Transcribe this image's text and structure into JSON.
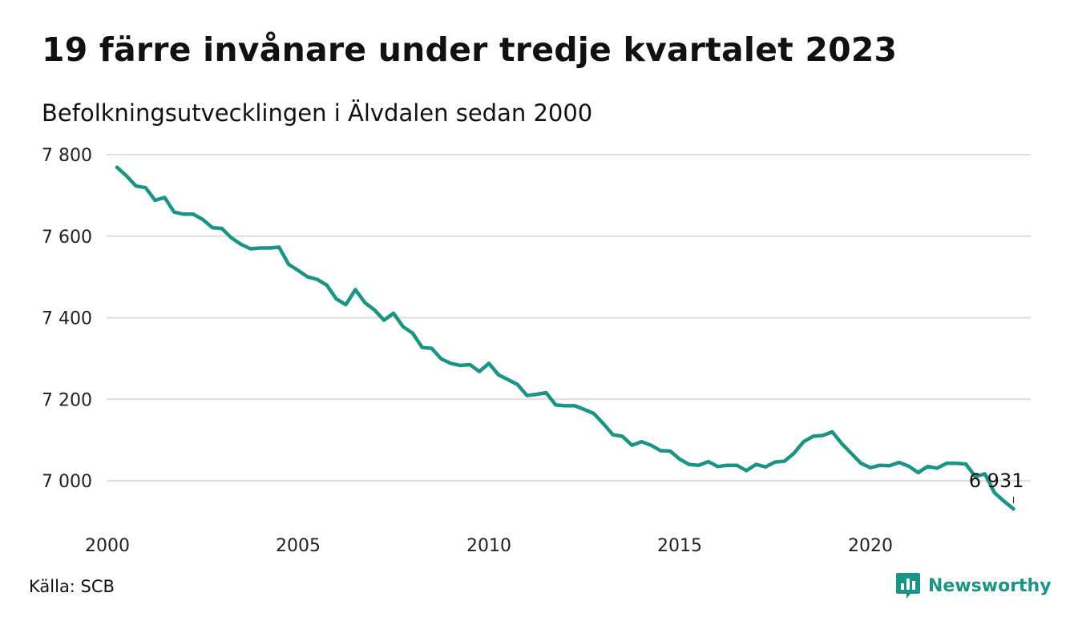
{
  "header": {
    "title": "19 färre invånare under tredje kvartalet 2023",
    "subtitle": "Befolkningsutvecklingen i Älvdalen sedan 2000"
  },
  "footer": {
    "source": "Källa: SCB",
    "brand": "Newsworthy"
  },
  "colors": {
    "line": "#1a9485",
    "grid": "#dddddd",
    "brand": "#1a9485"
  },
  "icons": {
    "brand_logo": "newsworthy-chart-bubble-icon"
  },
  "chart_data": {
    "type": "line",
    "title": "19 färre invånare under tredje kvartalet 2023",
    "subtitle": "Befolkningsutvecklingen i Älvdalen sedan 2000",
    "xlabel": "",
    "ylabel": "",
    "ylim": [
      6900,
      7800
    ],
    "xlim": [
      2000,
      2024.6
    ],
    "y_ticks": [
      7000,
      7200,
      7400,
      7600,
      7800
    ],
    "y_tick_labels": [
      "7 000",
      "7 200",
      "7 400",
      "7 600",
      "7 800"
    ],
    "x_ticks": [
      2000,
      2005,
      2010,
      2015,
      2020
    ],
    "x_tick_labels": [
      "2000",
      "2005",
      "2010",
      "2015",
      "2020"
    ],
    "grid": "horizontal",
    "end_label": "6 931",
    "series": [
      {
        "x": [
          2000.25,
          2000.5,
          2000.75,
          2001.0,
          2001.25,
          2001.5,
          2001.75,
          2002.0,
          2002.25,
          2002.5,
          2002.75,
          2003.0,
          2003.25,
          2003.5,
          2003.75,
          2004.0,
          2004.25,
          2004.5,
          2004.75,
          2005.0,
          2005.25,
          2005.5,
          2005.75,
          2006.0,
          2006.25,
          2006.5,
          2006.75,
          2007.0,
          2007.25,
          2007.5,
          2007.75,
          2008.0,
          2008.25,
          2008.5,
          2008.75,
          2009.0,
          2009.25,
          2009.5,
          2009.75,
          2010.0,
          2010.25,
          2010.5,
          2010.75,
          2011.0,
          2011.25,
          2011.5,
          2011.75,
          2012.0,
          2012.25,
          2012.5,
          2012.75,
          2013.0,
          2013.25,
          2013.5,
          2013.75,
          2014.0,
          2014.25,
          2014.5,
          2014.75,
          2015.0,
          2015.25,
          2015.5,
          2015.75,
          2016.0,
          2016.25,
          2016.5,
          2016.75,
          2017.0,
          2017.25,
          2017.5,
          2017.75,
          2018.0,
          2018.25,
          2018.5,
          2018.75,
          2019.0,
          2019.25,
          2019.5,
          2019.75,
          2020.0,
          2020.25,
          2020.5,
          2020.75,
          2021.0,
          2021.25,
          2021.5,
          2021.75,
          2022.0,
          2022.25,
          2022.5,
          2022.75,
          2023.0,
          2023.25,
          2023.5,
          2023.75
        ],
        "values": [
          7769,
          7748,
          7723,
          7719,
          7688,
          7695,
          7659,
          7654,
          7654,
          7641,
          7621,
          7619,
          7596,
          7580,
          7569,
          7571,
          7571,
          7573,
          7531,
          7516,
          7500,
          7494,
          7480,
          7446,
          7432,
          7469,
          7437,
          7419,
          7394,
          7411,
          7378,
          7362,
          7327,
          7325,
          7299,
          7288,
          7283,
          7285,
          7268,
          7288,
          7260,
          7248,
          7236,
          7209,
          7212,
          7216,
          7186,
          7184,
          7184,
          7175,
          7165,
          7140,
          7113,
          7109,
          7087,
          7096,
          7087,
          7074,
          7073,
          7053,
          7040,
          7038,
          7047,
          7035,
          7038,
          7038,
          7025,
          7040,
          7034,
          7046,
          7048,
          7068,
          7096,
          7109,
          7111,
          7120,
          7091,
          7067,
          7043,
          7032,
          7038,
          7037,
          7045,
          7036,
          7020,
          7035,
          7031,
          7043,
          7043,
          7041,
          7010,
          7017,
          6971,
          6950,
          6931
        ]
      }
    ]
  }
}
